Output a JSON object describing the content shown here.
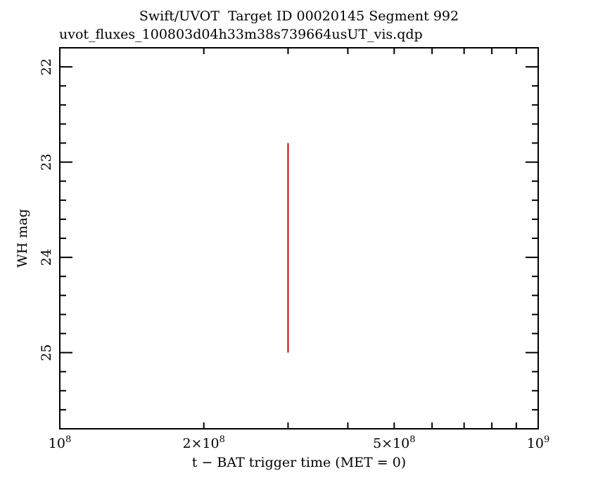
{
  "chart_data": {
    "type": "scatter",
    "title": "Swift/UVOT  Target ID 00020145 Segment 992",
    "subtitle": "uvot_fluxes_100803d04h33m38s739664usUT_vis.qdp",
    "xlabel": "t − BAT trigger time (MET = 0)",
    "ylabel": "WH mag",
    "x_scale": "log",
    "xlim": [
      100000000,
      1000000000
    ],
    "ylim": [
      25.8,
      21.8
    ],
    "y_inverted": true,
    "x_ticks": [
      {
        "value": 100000000,
        "base": "10",
        "exp": "8"
      },
      {
        "value": 200000000,
        "base": "2×10",
        "exp": "8"
      },
      {
        "value": 500000000,
        "base": "5×10",
        "exp": "8"
      },
      {
        "value": 1000000000,
        "base": "10",
        "exp": "9"
      }
    ],
    "y_ticks": [
      22,
      23,
      24,
      25
    ],
    "series": [
      {
        "color": "#d00000",
        "points": [
          {
            "x": 300000000,
            "y_low": 22.8,
            "y_high": 25.0
          }
        ]
      }
    ],
    "grid": false
  }
}
